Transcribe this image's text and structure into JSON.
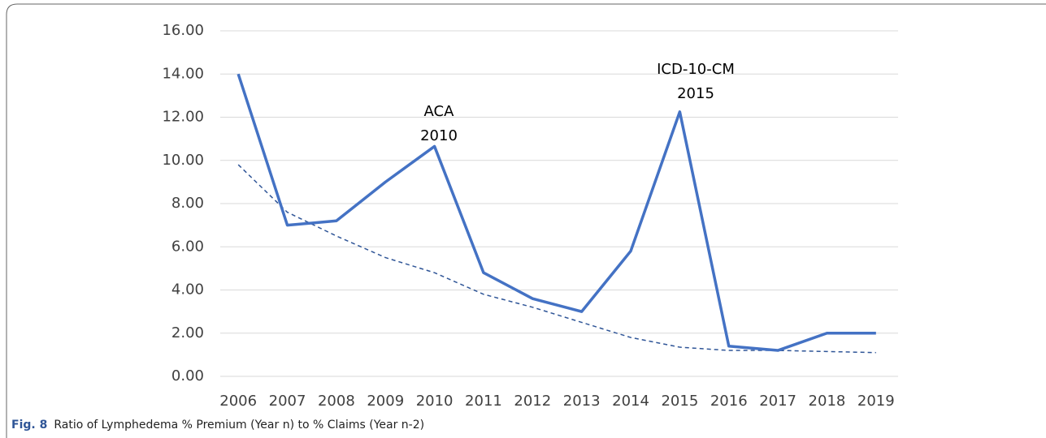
{
  "chart_data": {
    "type": "line",
    "caption_label": "Fig. 8",
    "caption": "Ratio of Lymphedema % Premium (Year n) to % Claims (Year n-2)",
    "categories": [
      "2006",
      "2007",
      "2008",
      "2009",
      "2010",
      "2011",
      "2012",
      "2013",
      "2014",
      "2015",
      "2016",
      "2017",
      "2018",
      "2019"
    ],
    "series": [
      {
        "color": "#4472c4",
        "values": [
          14.0,
          7.0,
          7.2,
          9.0,
          10.65,
          4.8,
          3.6,
          3.0,
          5.8,
          12.25,
          1.4,
          1.2,
          2.0,
          2.0
        ]
      },
      {
        "color": "#2f5597",
        "dashed": true,
        "values": [
          9.8,
          7.6,
          6.5,
          5.5,
          4.8,
          3.8,
          3.2,
          2.5,
          1.8,
          1.35,
          1.2,
          1.2,
          1.15,
          1.1
        ]
      }
    ],
    "annotations": [
      {
        "text": [
          "ACA",
          "2010"
        ]
      },
      {
        "text": [
          "ICD-10-CM",
          "2015"
        ]
      }
    ],
    "ylim": [
      0,
      16
    ],
    "yticks": [
      {
        "value": 0,
        "label": "0.00"
      },
      {
        "value": 2,
        "label": "2.00"
      },
      {
        "value": 4,
        "label": "4.00"
      },
      {
        "value": 6,
        "label": "6.00"
      },
      {
        "value": 8,
        "label": "8.00"
      },
      {
        "value": 10,
        "label": "10.00"
      },
      {
        "value": 12,
        "label": "12.00"
      },
      {
        "value": 14,
        "label": "14.00"
      },
      {
        "value": 16,
        "label": "16.00"
      }
    ],
    "grid": true
  }
}
